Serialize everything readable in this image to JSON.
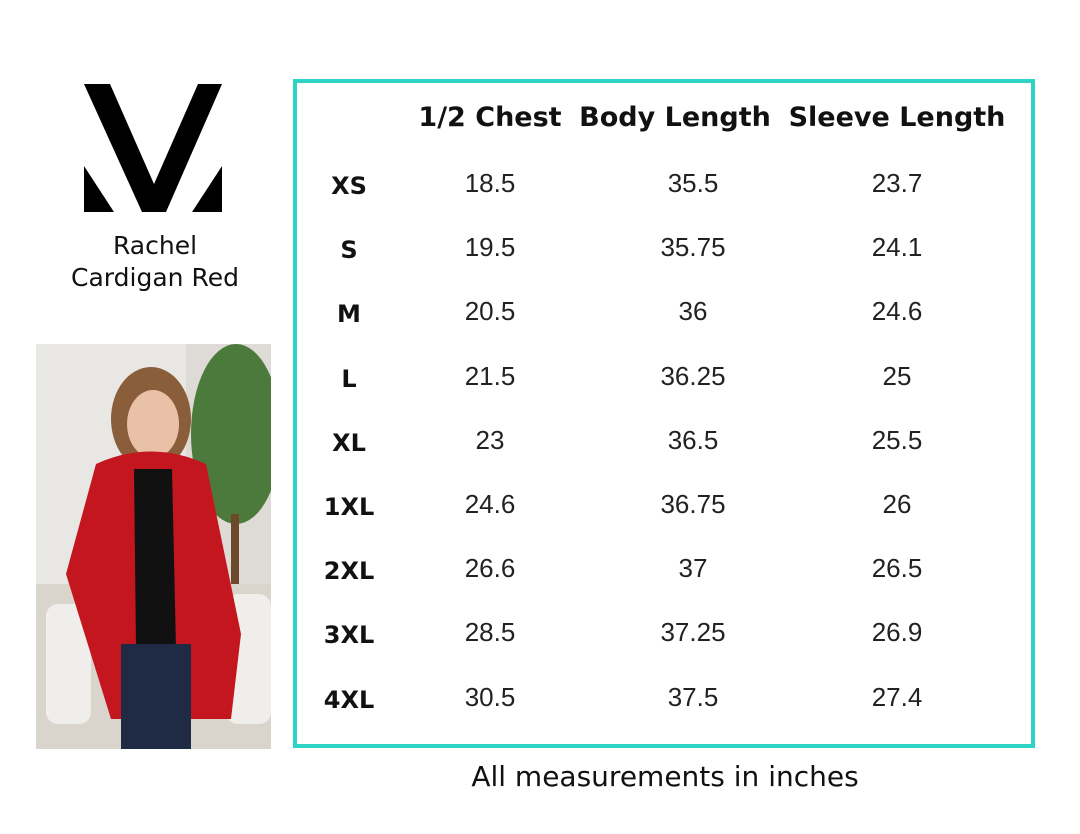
{
  "product": {
    "name": "Rachel Cardigan Red"
  },
  "table": {
    "columns": [
      "1/2 Chest",
      "Body Length",
      "Sleeve Length"
    ],
    "rows": [
      [
        "XS",
        "18.5",
        "35.5",
        "23.7"
      ],
      [
        "S",
        "19.5",
        "35.75",
        "24.1"
      ],
      [
        "M",
        "20.5",
        "36",
        "24.6"
      ],
      [
        "L",
        "21.5",
        "36.25",
        "25"
      ],
      [
        "XL",
        "23",
        "36.5",
        "25.5"
      ],
      [
        "1XL",
        "24.6",
        "36.75",
        "26"
      ],
      [
        "2XL",
        "26.6",
        "37",
        "26.5"
      ],
      [
        "3XL",
        "28.5",
        "37.25",
        "26.9"
      ],
      [
        "4XL",
        "30.5",
        "37.5",
        "27.4"
      ]
    ]
  },
  "footer": {
    "note": "All measurements in inches"
  }
}
